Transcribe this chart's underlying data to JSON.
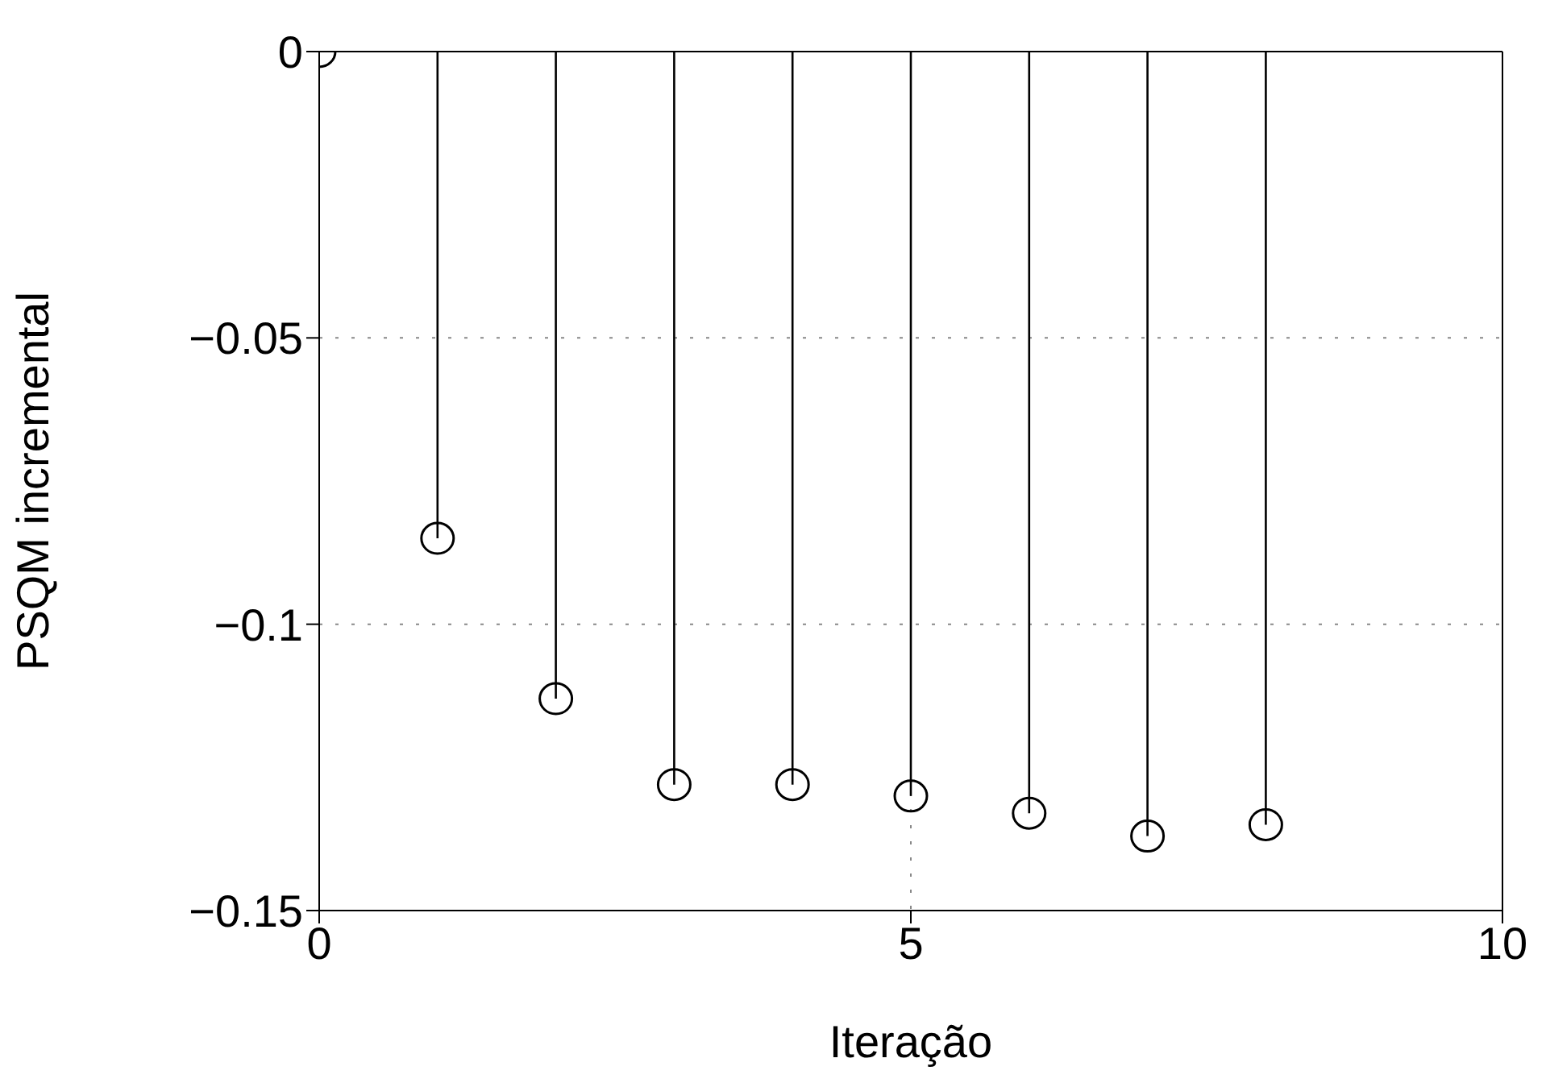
{
  "chart_data": {
    "type": "lollipop",
    "xlabel": "Iteração",
    "ylabel": "PSQM incremental",
    "x": [
      0,
      1,
      2,
      3,
      4,
      5,
      6,
      7,
      8
    ],
    "series": [
      {
        "color": "#000000",
        "values": [
          0,
          -0.085,
          -0.113,
          -0.128,
          -0.128,
          -0.13,
          -0.133,
          -0.137,
          -0.135
        ]
      }
    ],
    "xlim": [
      0,
      10
    ],
    "xticks": [
      0,
      5,
      10
    ],
    "ylim": [
      -0.15,
      0
    ],
    "yticks": [
      0,
      -0.05,
      -0.1,
      -0.15
    ],
    "grid": true,
    "marker": "circle",
    "line_style": "dotted"
  }
}
